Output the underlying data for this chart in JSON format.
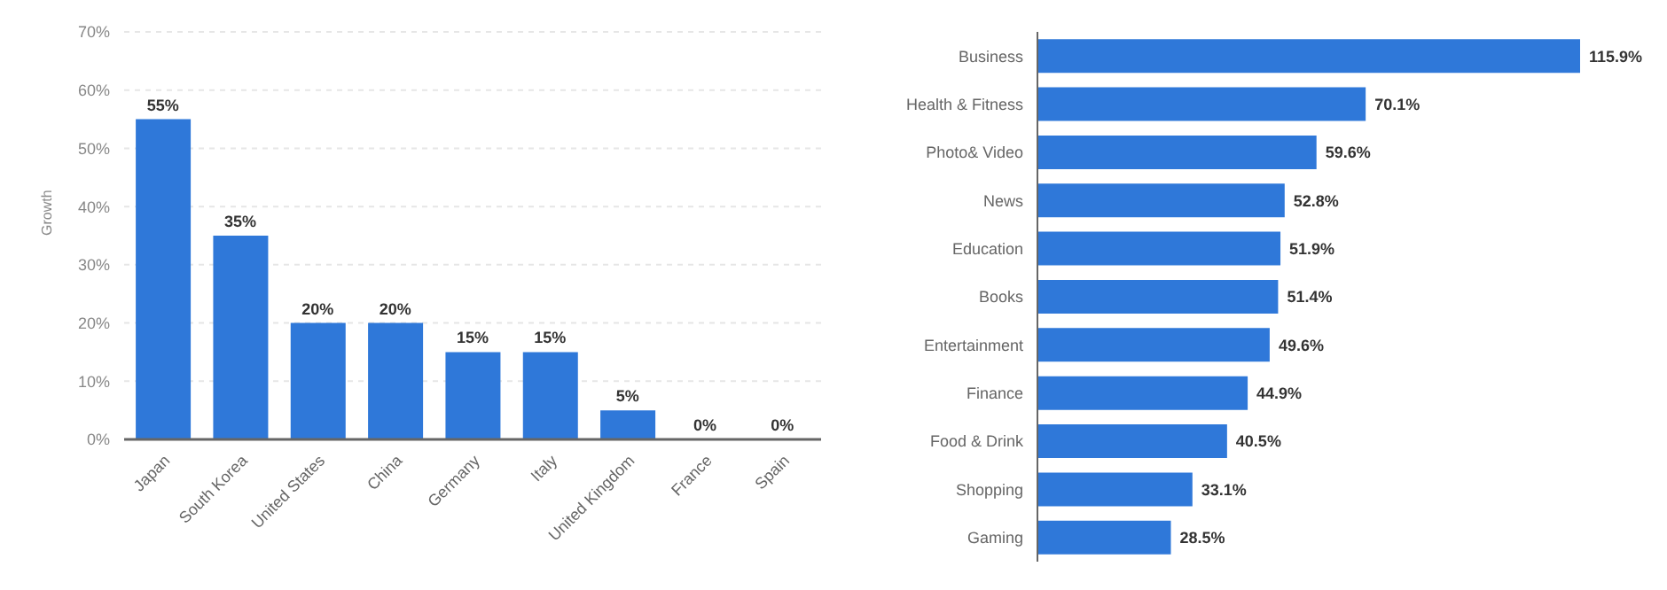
{
  "chart_data": [
    {
      "type": "bar",
      "ylabel": "Growth",
      "categories": [
        "Japan",
        "South Korea",
        "United States",
        "China",
        "Germany",
        "Italy",
        "United Kingdom",
        "France",
        "Spain"
      ],
      "values": [
        55,
        35,
        20,
        20,
        15,
        15,
        5,
        0,
        0
      ],
      "color": "#2f78d9",
      "value_labels": [
        "55%",
        "35%",
        "20%",
        "20%",
        "15%",
        "15%",
        "5%",
        "0%",
        "0%"
      ],
      "ylim": [
        0,
        70
      ],
      "yticks": [
        {
          "value": 0,
          "label": "0%"
        },
        {
          "value": 10,
          "label": "10%"
        },
        {
          "value": 20,
          "label": "20%"
        },
        {
          "value": 30,
          "label": "30%"
        },
        {
          "value": 40,
          "label": "40%"
        },
        {
          "value": 50,
          "label": "50%"
        },
        {
          "value": 60,
          "label": "60%"
        },
        {
          "value": 70,
          "label": "70%"
        }
      ],
      "grid": "y"
    },
    {
      "type": "bar",
      "orientation": "horizontal",
      "categories": [
        "Business",
        "Health & Fitness",
        "Photo& Video",
        "News",
        "Education",
        "Books",
        "Entertainment",
        "Finance",
        "Food & Drink",
        "Shopping",
        "Gaming"
      ],
      "values": [
        115.9,
        70.1,
        59.6,
        52.8,
        51.9,
        51.4,
        49.6,
        44.9,
        40.5,
        33.1,
        28.5
      ],
      "color": "#2f78d9",
      "value_labels": [
        "115.9%",
        "70.1%",
        "59.6%",
        "52.8%",
        "51.9%",
        "51.4%",
        "49.6%",
        "44.9%",
        "40.5%",
        "33.1%",
        "28.5%"
      ],
      "tick_labels": "y"
    }
  ]
}
